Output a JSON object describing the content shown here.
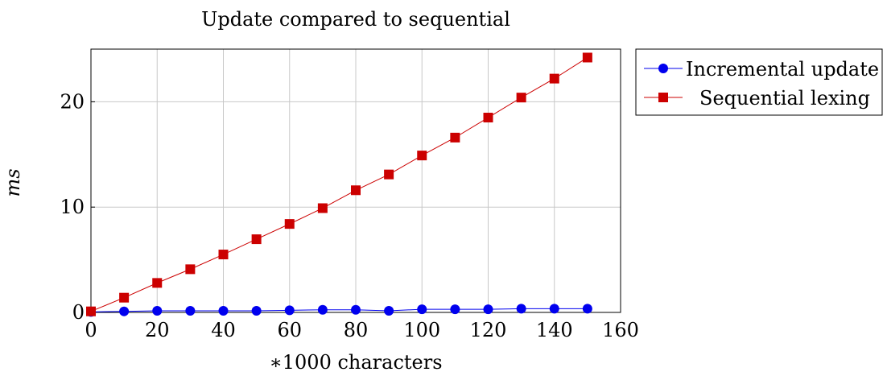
{
  "chart_data": {
    "type": "line",
    "title": "Update compared to sequential",
    "xlabel": "∗1000 characters",
    "ylabel": "ms",
    "xlim": [
      0,
      160
    ],
    "ylim": [
      0,
      25
    ],
    "x_ticks": [
      "0",
      "20",
      "40",
      "60",
      "80",
      "100",
      "120",
      "140",
      "160"
    ],
    "y_ticks": [
      "0",
      "10",
      "20"
    ],
    "grid": true,
    "legend_position": "outside-top-right",
    "x": [
      0,
      10,
      20,
      30,
      40,
      50,
      60,
      70,
      80,
      90,
      100,
      110,
      120,
      130,
      140,
      150
    ],
    "series": [
      {
        "name": "Incremental update",
        "color": "#0000ee",
        "marker": "circle",
        "values": [
          0.05,
          0.1,
          0.15,
          0.15,
          0.15,
          0.15,
          0.2,
          0.25,
          0.25,
          0.15,
          0.3,
          0.3,
          0.3,
          0.35,
          0.35,
          0.35
        ]
      },
      {
        "name": "Sequential lexing",
        "color": "#cc0000",
        "marker": "square",
        "values": [
          0.1,
          1.4,
          2.8,
          4.1,
          5.5,
          6.95,
          8.4,
          9.9,
          11.6,
          13.1,
          14.9,
          16.6,
          18.5,
          20.4,
          22.2,
          24.2
        ]
      }
    ]
  }
}
